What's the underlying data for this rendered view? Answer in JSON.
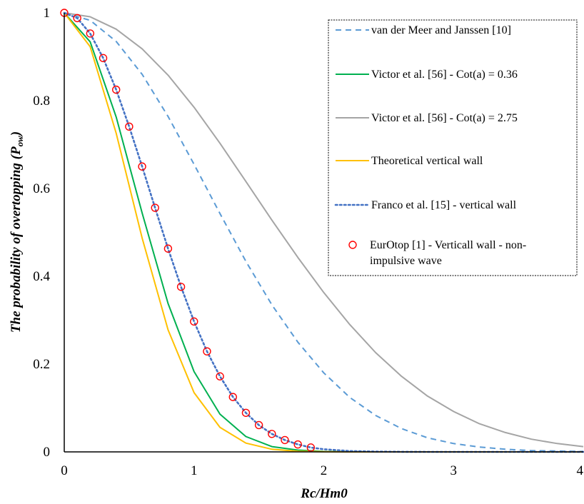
{
  "chart_data": {
    "type": "line",
    "title": "",
    "xlabel": "Rc/Hm0",
    "ylabel_prefix": "The probability of overtopping (",
    "ylabel_symbol": "P",
    "ylabel_subscript": "ow",
    "ylabel_suffix": ")",
    "xlim": [
      0,
      4
    ],
    "ylim": [
      0,
      1
    ],
    "x_ticks": [
      "0",
      "1",
      "2",
      "3",
      "4"
    ],
    "y_ticks": [
      "0",
      "0.2",
      "0.4",
      "0.6",
      "0.8",
      "1"
    ],
    "grid": false,
    "legend_position": "top-right",
    "series": [
      {
        "name": "van der Meer and Janssen [10]",
        "style": "dashed",
        "color": "#5b9bd5",
        "x": [
          0,
          0.2,
          0.4,
          0.6,
          0.8,
          1.0,
          1.2,
          1.4,
          1.6,
          1.8,
          2.0,
          2.2,
          2.4,
          2.6,
          2.8,
          3.0,
          3.2,
          3.4,
          3.6,
          3.8,
          4.0
        ],
        "y": [
          1.0,
          0.983,
          0.935,
          0.86,
          0.764,
          0.655,
          0.543,
          0.434,
          0.335,
          0.25,
          0.18,
          0.124,
          0.083,
          0.053,
          0.032,
          0.019,
          0.011,
          0.006,
          0.003,
          0.002,
          0.001
        ]
      },
      {
        "name": "Victor et al. [56] - Cot(a) = 0.36",
        "style": "solid",
        "color": "#00b050",
        "x": [
          0,
          0.2,
          0.4,
          0.6,
          0.8,
          1.0,
          1.2,
          1.4,
          1.6,
          1.8,
          2.0,
          2.2,
          2.4,
          2.6,
          2.8,
          3.0,
          3.2,
          3.4,
          3.6,
          3.8,
          4.0
        ],
        "y": [
          1.0,
          0.934,
          0.763,
          0.544,
          0.338,
          0.183,
          0.086,
          0.035,
          0.012,
          0.004,
          0.001,
          0.0003,
          0,
          0,
          0,
          0,
          0,
          0,
          0,
          0,
          0
        ]
      },
      {
        "name": "Victor et al. [56] - Cot(a) = 2.75",
        "style": "solid",
        "color": "#a5a5a5",
        "x": [
          0,
          0.2,
          0.4,
          0.6,
          0.8,
          1.0,
          1.2,
          1.4,
          1.6,
          1.8,
          2.0,
          2.2,
          2.4,
          2.6,
          2.8,
          3.0,
          3.2,
          3.4,
          3.6,
          3.8,
          4.0
        ],
        "y": [
          1.0,
          0.991,
          0.963,
          0.918,
          0.858,
          0.785,
          0.703,
          0.616,
          0.528,
          0.443,
          0.363,
          0.29,
          0.226,
          0.172,
          0.127,
          0.092,
          0.064,
          0.044,
          0.029,
          0.019,
          0.012
        ]
      },
      {
        "name": "Theoretical vertical wall",
        "style": "solid",
        "color": "#ffc000",
        "x": [
          0,
          0.2,
          0.4,
          0.6,
          0.8,
          1.0,
          1.2,
          1.4,
          1.6,
          1.8,
          2.0,
          2.2,
          2.4,
          2.6,
          2.8,
          3.0,
          3.2,
          3.4,
          3.6,
          3.8,
          4.0
        ],
        "y": [
          1.0,
          0.923,
          0.726,
          0.487,
          0.278,
          0.135,
          0.056,
          0.02,
          0.006,
          0.0015,
          0.0003,
          0,
          0,
          0,
          0,
          0,
          0,
          0,
          0,
          0,
          0
        ]
      },
      {
        "name": "Franco et al. [15] - vertical wall",
        "style": "dotted",
        "color": "#4472c4",
        "x": [
          0,
          0.1,
          0.2,
          0.3,
          0.4,
          0.5,
          0.6,
          0.7,
          0.8,
          0.9,
          1.0,
          1.1,
          1.2,
          1.3,
          1.4,
          1.5,
          1.6,
          1.7,
          1.8,
          1.9,
          2.0,
          2.2,
          2.4,
          2.6,
          2.8,
          3.0,
          3.5,
          4.0
        ],
        "y": [
          1.0,
          0.988,
          0.953,
          0.897,
          0.825,
          0.741,
          0.65,
          0.556,
          0.463,
          0.376,
          0.297,
          0.229,
          0.172,
          0.125,
          0.089,
          0.061,
          0.041,
          0.027,
          0.017,
          0.01,
          0.006,
          0.002,
          0.0006,
          0.0002,
          0,
          0,
          0,
          0
        ]
      },
      {
        "name": "EurOtop [1] - Verticall wall - non-impulsive wave",
        "legend_lines": [
          "EurOtop [1] - Verticall wall - non-",
          "impulsive wave"
        ],
        "style": "markers",
        "color": "#ff0000",
        "x": [
          0,
          0.1,
          0.2,
          0.3,
          0.4,
          0.5,
          0.6,
          0.7,
          0.8,
          0.9,
          1.0,
          1.1,
          1.2,
          1.3,
          1.4,
          1.5,
          1.6,
          1.7,
          1.8,
          1.9
        ],
        "y": [
          1.0,
          0.988,
          0.953,
          0.897,
          0.825,
          0.741,
          0.65,
          0.556,
          0.463,
          0.376,
          0.297,
          0.229,
          0.172,
          0.125,
          0.089,
          0.061,
          0.041,
          0.027,
          0.017,
          0.01
        ]
      }
    ]
  }
}
